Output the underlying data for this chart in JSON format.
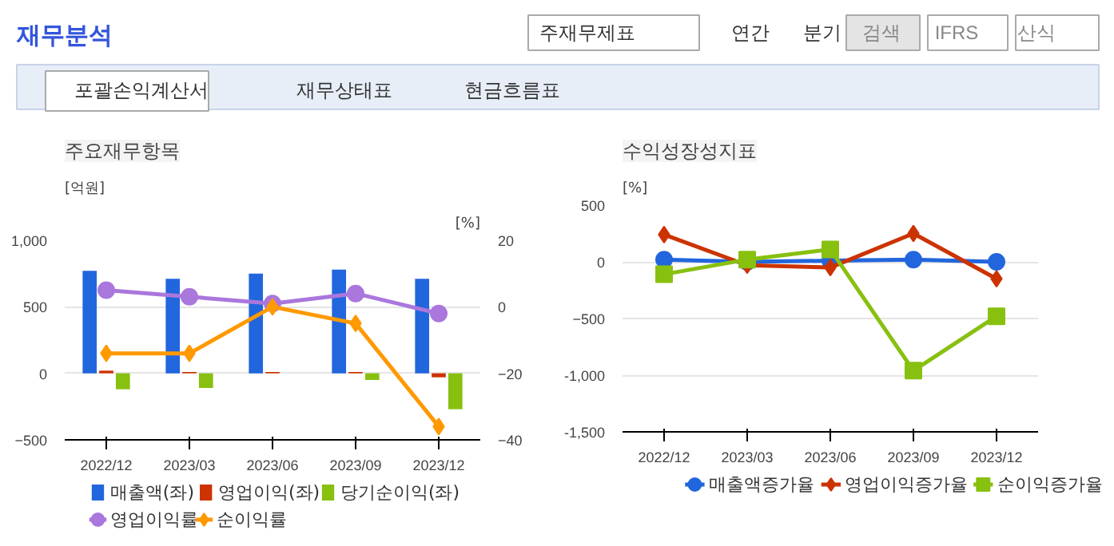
{
  "chart_data": [
    {
      "type": "other",
      "title": "재무분석",
      "annotations": [
        "주재무제표",
        "연간",
        "분기",
        "검색",
        "IFRS",
        "산식",
        "포괄손익계산서",
        "재무상태표",
        "현금흐름표"
      ]
    },
    {
      "type": "bar",
      "title": "주요재무항목",
      "ylabel": "[억원]",
      "y2label": "[%]",
      "categories": [
        "2022/12",
        "2023/03",
        "2023/06",
        "2023/09",
        "2023/12"
      ],
      "ylim": [
        -500,
        1000
      ],
      "yticks": [
        -500,
        0,
        500,
        {
          "value": 1000,
          "label": "1,000"
        }
      ],
      "y2lim": [
        -40,
        20
      ],
      "y2ticks": [
        -40,
        -20,
        0,
        20
      ],
      "grid": "y",
      "legend": "bottom",
      "series": [
        {
          "name": "매출액(좌)",
          "color": "#2266dd",
          "values": [
            770,
            710,
            750,
            780,
            710
          ]
        },
        {
          "name": "영업이익(좌)",
          "color": "#cc3300",
          "values": [
            20,
            10,
            10,
            10,
            -30
          ]
        },
        {
          "name": "당기순이익(좌)",
          "color": "#88c010",
          "values": [
            -120,
            -110,
            0,
            -50,
            -270
          ]
        },
        {
          "name": "영업이익률",
          "type": "line",
          "axis": "y2",
          "marker": "circle",
          "color": "#aa77dd",
          "values": [
            5,
            3,
            1,
            4,
            -2
          ]
        },
        {
          "name": "순이익률",
          "type": "line",
          "axis": "y2",
          "marker": "diamond",
          "color": "#ff9900",
          "values": [
            -14,
            -14,
            0,
            -5,
            -36
          ]
        }
      ]
    },
    {
      "type": "line",
      "title": "수익성장성지표",
      "ylabel": "[%]",
      "categories": [
        "2022/12",
        "2023/03",
        "2023/06",
        "2023/09",
        "2023/12"
      ],
      "ylim": [
        -1500,
        500
      ],
      "yticks": [
        {
          "value": -1500,
          "label": "-1,500"
        },
        {
          "value": -1000,
          "label": "-1,000"
        },
        -500,
        0,
        500
      ],
      "grid": "y",
      "legend": "bottom",
      "series": [
        {
          "name": "매출액증가율",
          "marker": "circle",
          "color": "#2266dd",
          "values": [
            20,
            0,
            10,
            20,
            0
          ]
        },
        {
          "name": "영업이익증가율",
          "marker": "diamond",
          "color": "#cc3300",
          "values": [
            240,
            -30,
            -50,
            250,
            -150
          ]
        },
        {
          "name": "순이익증가율",
          "marker": "square",
          "color": "#88c010",
          "values": [
            -110,
            20,
            110,
            -960,
            -480
          ]
        }
      ]
    }
  ]
}
